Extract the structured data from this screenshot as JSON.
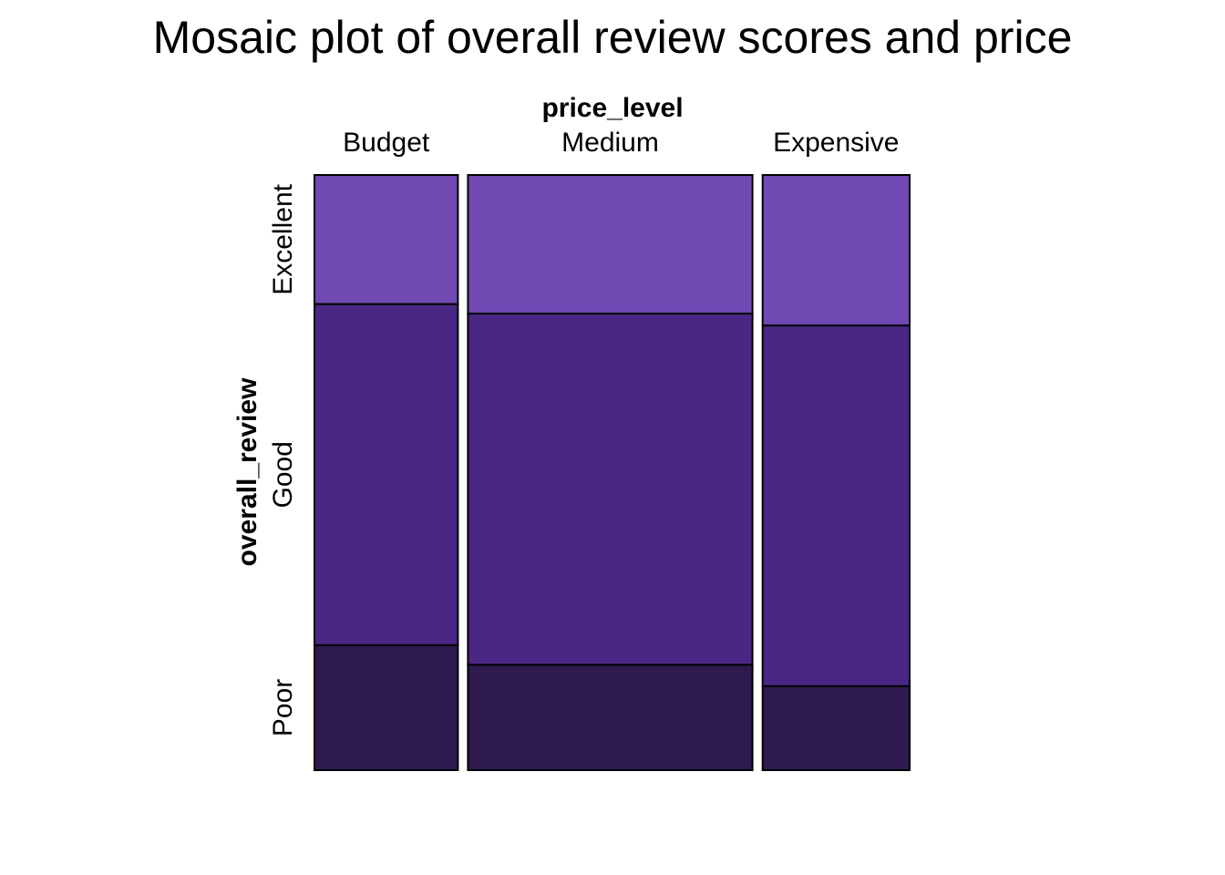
{
  "chart_data": {
    "type": "mosaic",
    "title": "Mosaic plot of overall review scores and price",
    "x_variable": "price_level",
    "y_variable": "overall_review",
    "x_levels": [
      "Budget",
      "Medium",
      "Expensive"
    ],
    "y_levels": [
      "Excellent",
      "Good",
      "Poor"
    ],
    "x_proportions": [
      0.242,
      0.48,
      0.248
    ],
    "y_proportions_by_x": [
      {
        "x": "Budget",
        "Excellent": 0.217,
        "Good": 0.573,
        "Poor": 0.21
      },
      {
        "x": "Medium",
        "Excellent": 0.233,
        "Good": 0.59,
        "Poor": 0.177
      },
      {
        "x": "Expensive",
        "Excellent": 0.253,
        "Good": 0.606,
        "Poor": 0.141
      }
    ],
    "colors": {
      "Excellent": "#7049b2",
      "Good": "#4a2784",
      "Poor": "#2e1a4f"
    }
  }
}
